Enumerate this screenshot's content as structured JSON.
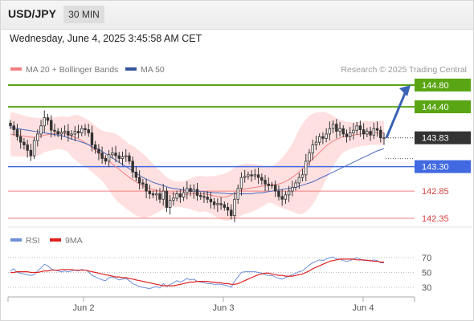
{
  "header": {
    "symbol": "USD/JPY",
    "timeframe": "30 MIN"
  },
  "timestamp": "Wednesday, June 4, 2025 3:45:58 AM CET",
  "legend": {
    "ma20": "MA 20 + Bollinger Bands",
    "ma50": "MA 50",
    "credit": "Research © 2025 Trading Central"
  },
  "rsi_legend": {
    "rsi": "RSI",
    "ma": "9MA"
  },
  "colors": {
    "resistance": "#5aa514",
    "support": "#4169e1",
    "pivot_support": "#f08080",
    "price": "#333333",
    "ma20": "#f08080",
    "ma50": "#4a6cc0",
    "band": "#ffe0e0",
    "arrow": "#3a63b4",
    "rsi": "#6f8fd8",
    "rsi_ma": "#e02020"
  },
  "chart_data": [
    {
      "type": "candlestick",
      "symbol": "USD/JPY",
      "interval": "30 MIN",
      "x_tick_labels": [
        "Jun 2",
        "Jun 3",
        "Jun 4"
      ],
      "ylim": [
        142.2,
        144.9
      ],
      "levels": [
        {
          "value": 144.8,
          "label": "144.80",
          "kind": "resistance"
        },
        {
          "value": 144.4,
          "label": "144.40",
          "kind": "resistance"
        },
        {
          "value": 143.83,
          "label": "143.83",
          "kind": "last"
        },
        {
          "value": 143.3,
          "label": "143.30",
          "kind": "pivot"
        },
        {
          "value": 142.85,
          "label": "142.85",
          "kind": "support"
        },
        {
          "value": 142.35,
          "label": "142.35",
          "kind": "support"
        }
      ],
      "close": [
        144.05,
        143.98,
        143.85,
        143.75,
        143.7,
        143.6,
        143.5,
        143.78,
        143.9,
        144.05,
        144.2,
        144.15,
        143.97,
        143.95,
        143.9,
        143.93,
        143.95,
        143.88,
        143.9,
        143.95,
        143.92,
        144.0,
        143.98,
        143.92,
        143.7,
        143.62,
        143.55,
        143.45,
        143.4,
        143.52,
        143.55,
        143.5,
        143.45,
        143.48,
        143.5,
        143.4,
        143.2,
        143.1,
        143.0,
        142.98,
        142.85,
        142.8,
        142.78,
        142.8,
        142.7,
        142.85,
        142.55,
        142.68,
        142.72,
        142.8,
        142.74,
        142.82,
        142.9,
        142.84,
        142.88,
        142.77,
        142.75,
        142.74,
        142.7,
        142.65,
        142.6,
        142.62,
        142.6,
        142.55,
        142.5,
        142.4,
        142.7,
        142.9,
        143.1,
        143.12,
        143.15,
        143.13,
        143.15,
        143.1,
        143.05,
        142.98,
        142.95,
        142.96,
        142.85,
        142.75,
        142.7,
        142.78,
        142.85,
        142.92,
        143.0,
        143.1,
        143.15,
        143.4,
        143.55,
        143.7,
        143.75,
        143.85,
        143.82,
        143.9,
        144.0,
        144.08,
        143.95,
        144.0,
        143.9,
        143.85,
        143.92,
        143.97,
        144.05,
        143.98,
        143.9,
        143.95,
        143.88,
        144.0,
        143.97,
        143.83,
        143.83
      ],
      "moving_averages": [
        {
          "name": "MA 20",
          "values": [
            143.9,
            143.89,
            143.88,
            143.87,
            143.86,
            143.85,
            143.84,
            143.84,
            143.85,
            143.86,
            143.88,
            143.89,
            143.9,
            143.91,
            143.92,
            143.92,
            143.91,
            143.89,
            143.86,
            143.84,
            143.81,
            143.78,
            143.74,
            143.7,
            143.65,
            143.6,
            143.55,
            143.5,
            143.45,
            143.4,
            143.35,
            143.3,
            143.25,
            143.2,
            143.15,
            143.1,
            143.06,
            143.02,
            142.98,
            142.95,
            142.92,
            142.9,
            142.88,
            142.86,
            142.85,
            142.84,
            142.82,
            142.81,
            142.8,
            142.79,
            142.79,
            142.79,
            142.79,
            142.8,
            142.8,
            142.8,
            142.8,
            142.8,
            142.79,
            142.78,
            142.76,
            142.75,
            142.74,
            142.74,
            142.75,
            142.78,
            142.81,
            142.84,
            142.87,
            142.89,
            142.9,
            142.91,
            142.92,
            142.93,
            142.94,
            142.95,
            142.96,
            142.97,
            142.97,
            142.98,
            143.0,
            143.03,
            143.06,
            143.1,
            143.15,
            143.2,
            143.26,
            143.32,
            143.38,
            143.44,
            143.5,
            143.56,
            143.62,
            143.68,
            143.73,
            143.77,
            143.8,
            143.83,
            143.85,
            143.86,
            143.87,
            143.88,
            143.89,
            143.9,
            143.91,
            143.91,
            143.92,
            143.92,
            143.92,
            143.92,
            143.92
          ]
        },
        {
          "name": "MA 50",
          "values": [
            144.02,
            144.01,
            144.0,
            143.99,
            143.98,
            143.97,
            143.96,
            143.95,
            143.94,
            143.93,
            143.92,
            143.91,
            143.9,
            143.89,
            143.88,
            143.87,
            143.85,
            143.83,
            143.81,
            143.79,
            143.77,
            143.75,
            143.73,
            143.7,
            143.67,
            143.64,
            143.61,
            143.58,
            143.54,
            143.5,
            143.46,
            143.42,
            143.38,
            143.34,
            143.3,
            143.26,
            143.22,
            143.18,
            143.14,
            143.1,
            143.07,
            143.04,
            143.01,
            142.99,
            142.97,
            142.95,
            142.93,
            142.91,
            142.9,
            142.89,
            142.88,
            142.87,
            142.86,
            142.86,
            142.85,
            142.85,
            142.84,
            142.84,
            142.83,
            142.83,
            142.82,
            142.82,
            142.81,
            142.81,
            142.8,
            142.8,
            142.8,
            142.8,
            142.8,
            142.8,
            142.8,
            142.8,
            142.81,
            142.82,
            142.82,
            142.83,
            142.84,
            142.85,
            142.86,
            142.87,
            142.88,
            142.89,
            142.9,
            142.91,
            142.92,
            142.94,
            142.96,
            142.98,
            143.0,
            143.02,
            143.05,
            143.08,
            143.11,
            143.14,
            143.17,
            143.2,
            143.23,
            143.26,
            143.29,
            143.32,
            143.35,
            143.38,
            143.41,
            143.44,
            143.47,
            143.5,
            143.53,
            143.56,
            143.59,
            143.61,
            143.63
          ]
        }
      ],
      "projection": {
        "from": 143.83,
        "to": 144.8
      }
    },
    {
      "type": "line",
      "name": "RSI",
      "x_tick_labels": [
        "Jun 2",
        "Jun 3",
        "Jun 4"
      ],
      "y_tick_labels": [
        "70",
        "50",
        "30"
      ],
      "ylim": [
        20,
        80
      ],
      "series": [
        {
          "name": "RSI",
          "values": [
            52,
            55,
            50,
            49,
            48,
            47,
            46,
            47,
            52,
            56,
            61,
            59,
            55,
            53,
            52,
            51,
            52,
            51,
            52,
            53,
            52,
            54,
            53,
            51,
            46,
            44,
            42,
            40,
            39,
            43,
            44,
            42,
            40,
            41,
            42,
            39,
            35,
            33,
            31,
            30,
            29,
            28,
            30,
            31,
            29,
            35,
            31,
            34,
            36,
            39,
            37,
            39,
            42,
            40,
            41,
            38,
            37,
            36,
            35,
            35,
            34,
            34,
            34,
            33,
            32,
            30,
            38,
            44,
            50,
            51,
            51,
            51,
            51,
            50,
            49,
            47,
            46,
            46,
            44,
            42,
            41,
            43,
            45,
            47,
            49,
            51,
            52,
            56,
            60,
            63,
            65,
            67,
            66,
            68,
            70,
            71,
            68,
            68,
            66,
            65,
            66,
            68,
            70,
            68,
            66,
            67,
            65,
            67,
            66,
            63,
            63
          ]
        },
        {
          "name": "9MA",
          "values": [
            50,
            50,
            51,
            51,
            51,
            51,
            50,
            50,
            50,
            51,
            52,
            52,
            53,
            53,
            53,
            54,
            54,
            54,
            54,
            53,
            53,
            53,
            53,
            52,
            51,
            50,
            49,
            48,
            47,
            46,
            45,
            44,
            44,
            43,
            43,
            42,
            41,
            40,
            39,
            38,
            37,
            36,
            35,
            34,
            33,
            32,
            32,
            32,
            32,
            33,
            34,
            35,
            36,
            37,
            37,
            38,
            38,
            38,
            38,
            37,
            37,
            36,
            36,
            35,
            35,
            34,
            34,
            35,
            37,
            39,
            41,
            43,
            45,
            47,
            48,
            49,
            49,
            48,
            47,
            46,
            46,
            45,
            45,
            45,
            46,
            47,
            48,
            50,
            52,
            55,
            57,
            59,
            61,
            63,
            65,
            66,
            67,
            68,
            68,
            68,
            68,
            68,
            67,
            67,
            67,
            66,
            66,
            65,
            65,
            64,
            64
          ]
        }
      ]
    }
  ]
}
